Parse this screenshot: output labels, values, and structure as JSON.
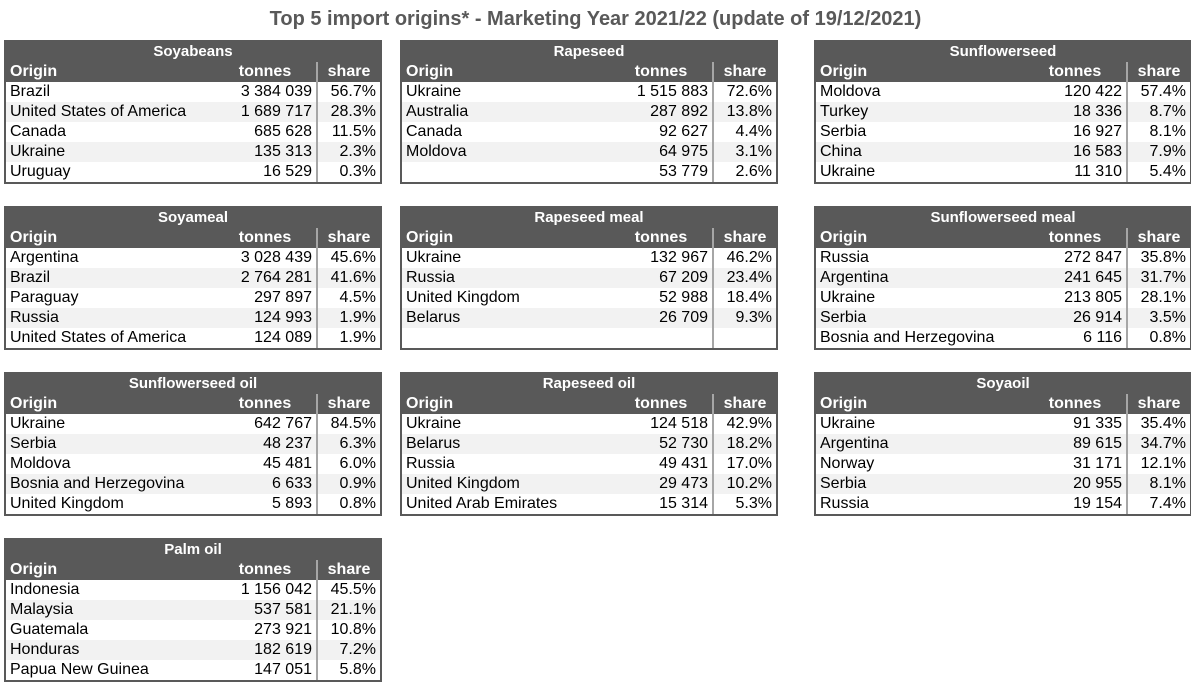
{
  "title": "Top 5 import origins* - Marketing Year 2021/22 (update of 19/12/2021)",
  "headers": {
    "origin": "Origin",
    "tonnes": "tonnes",
    "share": "share"
  },
  "tables": [
    {
      "name": "Soyabeans",
      "rows": [
        {
          "origin": "Brazil",
          "tonnes": "3 384 039",
          "share": "56.7%"
        },
        {
          "origin": "United States of America",
          "tonnes": "1 689 717",
          "share": "28.3%"
        },
        {
          "origin": "Canada",
          "tonnes": "685 628",
          "share": "11.5%"
        },
        {
          "origin": "Ukraine",
          "tonnes": "135 313",
          "share": "2.3%"
        },
        {
          "origin": "Uruguay",
          "tonnes": "16 529",
          "share": "0.3%"
        }
      ]
    },
    {
      "name": "Rapeseed",
      "rows": [
        {
          "origin": "Ukraine",
          "tonnes": "1 515 883",
          "share": "72.6%"
        },
        {
          "origin": "Australia",
          "tonnes": "287 892",
          "share": "13.8%"
        },
        {
          "origin": "Canada",
          "tonnes": "92 627",
          "share": "4.4%"
        },
        {
          "origin": "Moldova",
          "tonnes": "64 975",
          "share": "3.1%"
        },
        {
          "origin": "",
          "tonnes": "53 779",
          "share": "2.6%"
        }
      ]
    },
    {
      "name": "Sunflowerseed",
      "rows": [
        {
          "origin": "Moldova",
          "tonnes": "120 422",
          "share": "57.4%"
        },
        {
          "origin": "Turkey",
          "tonnes": "18 336",
          "share": "8.7%"
        },
        {
          "origin": "Serbia",
          "tonnes": "16 927",
          "share": "8.1%"
        },
        {
          "origin": "China",
          "tonnes": "16 583",
          "share": "7.9%"
        },
        {
          "origin": "Ukraine",
          "tonnes": "11 310",
          "share": "5.4%"
        }
      ]
    },
    {
      "name": "Soyameal",
      "rows": [
        {
          "origin": "Argentina",
          "tonnes": "3 028 439",
          "share": "45.6%"
        },
        {
          "origin": "Brazil",
          "tonnes": "2 764 281",
          "share": "41.6%"
        },
        {
          "origin": "Paraguay",
          "tonnes": "297 897",
          "share": "4.5%"
        },
        {
          "origin": "Russia",
          "tonnes": "124 993",
          "share": "1.9%"
        },
        {
          "origin": "United States of America",
          "tonnes": "124 089",
          "share": "1.9%"
        }
      ]
    },
    {
      "name": "Rapeseed meal",
      "rows": [
        {
          "origin": "Ukraine",
          "tonnes": "132 967",
          "share": "46.2%"
        },
        {
          "origin": "Russia",
          "tonnes": "67 209",
          "share": "23.4%"
        },
        {
          "origin": "United Kingdom",
          "tonnes": "52 988",
          "share": "18.4%"
        },
        {
          "origin": "Belarus",
          "tonnes": "26 709",
          "share": "9.3%"
        },
        {
          "origin": "",
          "tonnes": "",
          "share": ""
        }
      ]
    },
    {
      "name": "Sunflowerseed meal",
      "rows": [
        {
          "origin": "Russia",
          "tonnes": "272 847",
          "share": "35.8%"
        },
        {
          "origin": "Argentina",
          "tonnes": "241 645",
          "share": "31.7%"
        },
        {
          "origin": "Ukraine",
          "tonnes": "213 805",
          "share": "28.1%"
        },
        {
          "origin": "Serbia",
          "tonnes": "26 914",
          "share": "3.5%"
        },
        {
          "origin": "Bosnia and Herzegovina",
          "tonnes": "6 116",
          "share": "0.8%"
        }
      ]
    },
    {
      "name": "Sunflowerseed oil",
      "rows": [
        {
          "origin": "Ukraine",
          "tonnes": "642 767",
          "share": "84.5%"
        },
        {
          "origin": "Serbia",
          "tonnes": "48 237",
          "share": "6.3%"
        },
        {
          "origin": "Moldova",
          "tonnes": "45 481",
          "share": "6.0%"
        },
        {
          "origin": "Bosnia and Herzegovina",
          "tonnes": "6 633",
          "share": "0.9%"
        },
        {
          "origin": "United Kingdom",
          "tonnes": "5 893",
          "share": "0.8%"
        }
      ]
    },
    {
      "name": "Rapeseed oil",
      "rows": [
        {
          "origin": "Ukraine",
          "tonnes": "124 518",
          "share": "42.9%"
        },
        {
          "origin": "Belarus",
          "tonnes": "52 730",
          "share": "18.2%"
        },
        {
          "origin": "Russia",
          "tonnes": "49 431",
          "share": "17.0%"
        },
        {
          "origin": "United Kingdom",
          "tonnes": "29 473",
          "share": "10.2%"
        },
        {
          "origin": "United Arab Emirates",
          "tonnes": "15 314",
          "share": "5.3%"
        }
      ]
    },
    {
      "name": "Soyaoil",
      "rows": [
        {
          "origin": "Ukraine",
          "tonnes": "91 335",
          "share": "35.4%"
        },
        {
          "origin": "Argentina",
          "tonnes": "89 615",
          "share": "34.7%"
        },
        {
          "origin": "Norway",
          "tonnes": "31 171",
          "share": "12.1%"
        },
        {
          "origin": "Serbia",
          "tonnes": "20 955",
          "share": "8.1%"
        },
        {
          "origin": "Russia",
          "tonnes": "19 154",
          "share": "7.4%"
        }
      ]
    },
    {
      "name": "Palm oil",
      "rows": [
        {
          "origin": "Indonesia",
          "tonnes": "1 156 042",
          "share": "45.5%"
        },
        {
          "origin": "Malaysia",
          "tonnes": "537 581",
          "share": "21.1%"
        },
        {
          "origin": "Guatemala",
          "tonnes": "273 921",
          "share": "10.8%"
        },
        {
          "origin": "Honduras",
          "tonnes": "182 619",
          "share": "7.2%"
        },
        {
          "origin": "Papua New Guinea",
          "tonnes": "147 051",
          "share": "5.8%"
        }
      ]
    }
  ]
}
